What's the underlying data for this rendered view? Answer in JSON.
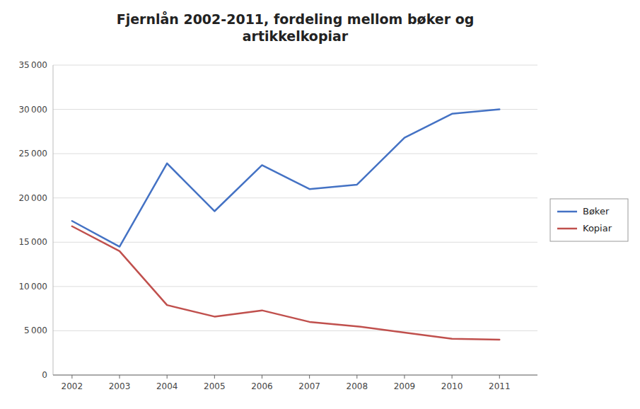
{
  "chart_data": {
    "type": "line",
    "title": "Fjernlån 2002-2011, fordeling mellom bøker og\nartikkelkopiar",
    "x": [
      2002,
      2003,
      2004,
      2005,
      2006,
      2007,
      2008,
      2009,
      2010,
      2011
    ],
    "series": [
      {
        "name": "Bøker",
        "color": "#4472C4",
        "values": [
          17400,
          14500,
          23900,
          18500,
          23700,
          21000,
          21500,
          26800,
          29500,
          30000
        ]
      },
      {
        "name": "Kopiar",
        "color": "#C0504D",
        "values": [
          16800,
          14000,
          7900,
          6600,
          7300,
          6000,
          5500,
          4800,
          4100,
          4000
        ]
      }
    ],
    "xlim": [
      2001.6,
      2011.8
    ],
    "xticks": [
      2002,
      2003,
      2004,
      2005,
      2006,
      2007,
      2008,
      2009,
      2010,
      2011
    ],
    "ylim": [
      0,
      35000
    ],
    "yticks": [
      0,
      {
        "value": 5000,
        "label": "5 000"
      },
      {
        "value": 10000,
        "label": "10 000"
      },
      {
        "value": 15000,
        "label": "15 000"
      },
      {
        "value": 20000,
        "label": "20 000"
      },
      {
        "value": 25000,
        "label": "25 000"
      },
      {
        "value": 30000,
        "label": "30 000"
      },
      {
        "value": 35000,
        "label": "35 000"
      }
    ],
    "grid": true,
    "legend": "right"
  }
}
